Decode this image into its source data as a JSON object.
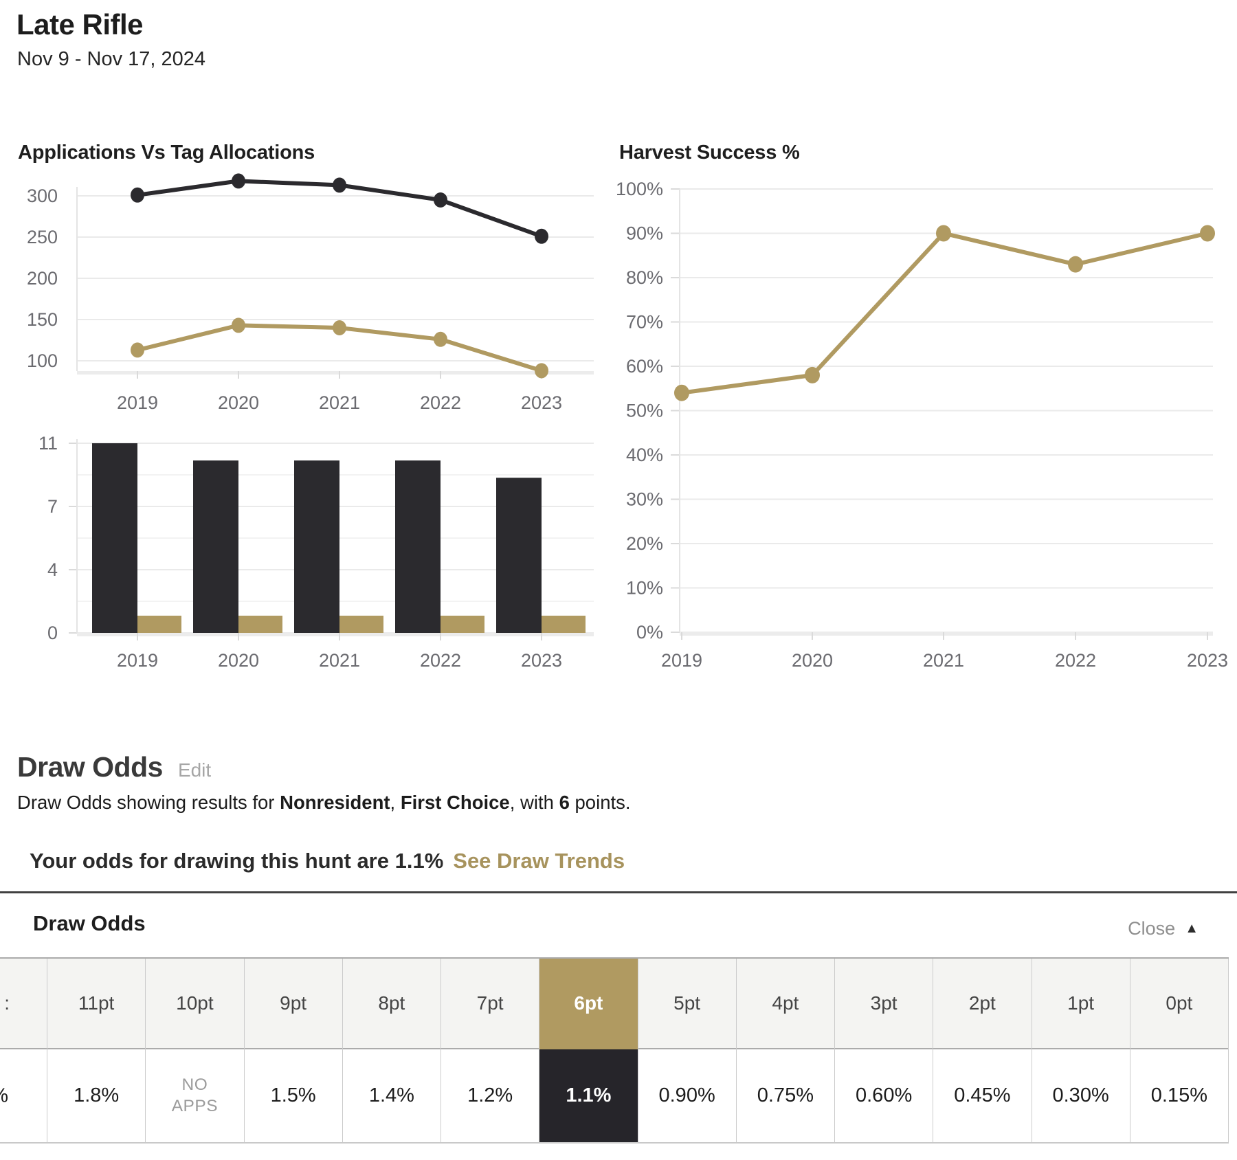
{
  "page": {
    "title": "Late Rifle",
    "date_range": "Nov 9 - Nov 17, 2024"
  },
  "colors": {
    "gold": "#b09a61",
    "dark": "#2b2a2e",
    "link_gold": "#a7935d",
    "highlight_header_bg": "#b09a61",
    "highlight_value_bg": "#26252a"
  },
  "chart_data": [
    {
      "type": "line",
      "title": "Applications Vs Tag Allocations",
      "x": [
        "2019",
        "2020",
        "2021",
        "2022",
        "2023"
      ],
      "series": [
        {
          "name": "applications",
          "color": "#2b2a2e",
          "values": [
            301,
            318,
            313,
            295,
            251
          ]
        },
        {
          "name": "tag allocations",
          "color": "#b09a61",
          "values": [
            113,
            143,
            140,
            126,
            88
          ]
        }
      ],
      "yticks": [
        300,
        250,
        200,
        150,
        100
      ],
      "ylim": [
        86,
        330
      ],
      "grid": true,
      "legend": "none"
    },
    {
      "type": "bar",
      "title": "",
      "x": [
        "2019",
        "2020",
        "2021",
        "2022",
        "2023"
      ],
      "series": [
        {
          "name": "dark bars",
          "color": "#2b2a2e",
          "values": [
            11,
            10,
            10,
            10,
            9
          ]
        },
        {
          "name": "gold bars",
          "color": "#b09a61",
          "values": [
            1,
            1,
            1,
            1,
            1
          ]
        }
      ],
      "yticks": [
        11,
        7,
        4,
        0
      ],
      "ylim": [
        0,
        11
      ],
      "grid": true,
      "legend": "none"
    },
    {
      "type": "line",
      "title": "Harvest Success %",
      "x": [
        "2019",
        "2020",
        "2021",
        "2022",
        "2023"
      ],
      "series": [
        {
          "name": "harvest success",
          "color": "#b09a61",
          "values": [
            54,
            58,
            90,
            83,
            90
          ]
        }
      ],
      "yticks": [
        100,
        90,
        80,
        70,
        60,
        50,
        40,
        30,
        20,
        10,
        0
      ],
      "tick_suffix": "%",
      "ylim": [
        0,
        100
      ],
      "grid": true,
      "legend": "none"
    }
  ],
  "draw_odds": {
    "heading": "Draw Odds",
    "edit_label": "Edit",
    "summary": {
      "p1": "Draw Odds showing results for ",
      "b1": "Nonresident",
      "p2": ", ",
      "b2": "First Choice",
      "p3": ", with ",
      "b3": "6",
      "p4": " points."
    },
    "odds_statement": "Your odds for drawing this hunt are 1.1%",
    "trends_link": "See Draw Trends",
    "panel": {
      "title": "Draw Odds",
      "close_label": "Close",
      "partial": {
        "header_fragment": ":",
        "value_fragment": "%"
      },
      "columns": [
        {
          "label": "11pt",
          "value": "1.8%"
        },
        {
          "label": "10pt",
          "value": "NO APPS",
          "no_apps": true
        },
        {
          "label": "9pt",
          "value": "1.5%"
        },
        {
          "label": "8pt",
          "value": "1.4%"
        },
        {
          "label": "7pt",
          "value": "1.2%"
        },
        {
          "label": "6pt",
          "value": "1.1%",
          "highlight": true
        },
        {
          "label": "5pt",
          "value": "0.90%"
        },
        {
          "label": "4pt",
          "value": "0.75%"
        },
        {
          "label": "3pt",
          "value": "0.60%"
        },
        {
          "label": "2pt",
          "value": "0.45%"
        },
        {
          "label": "1pt",
          "value": "0.30%"
        },
        {
          "label": "0pt",
          "value": "0.15%"
        }
      ]
    }
  }
}
